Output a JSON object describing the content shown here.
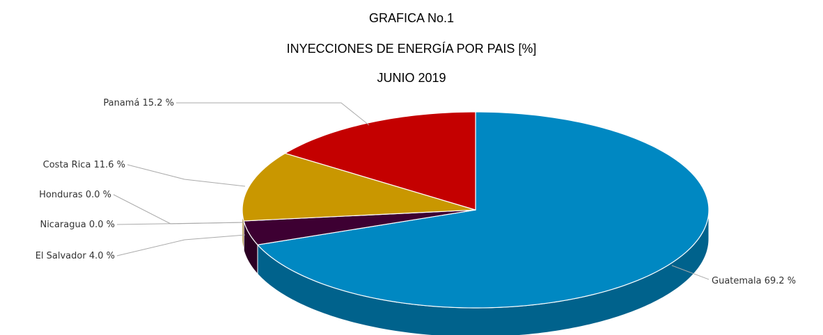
{
  "chart_data": {
    "type": "pie3d",
    "title": "GRAFICA No.1",
    "subtitle": "INYECCIONES DE ENERGÍA POR PAIS [%]",
    "date": "JUNIO 2019",
    "categories": [
      "Guatemala",
      "El Salvador",
      "Nicaragua",
      "Honduras",
      "Costa Rica",
      "Panamá"
    ],
    "values": [
      69.2,
      4.0,
      0.0,
      0.0,
      11.6,
      15.2
    ],
    "value_labels": [
      "69.2 %",
      "4.0 %",
      "0.0 %",
      "0.0 %",
      "11.6 %",
      "15.2 %"
    ],
    "colors": [
      "#0088c2",
      "#3d0032",
      "#5a7d2a",
      "#7a4fa0",
      "#c99700",
      "#c40000"
    ]
  }
}
